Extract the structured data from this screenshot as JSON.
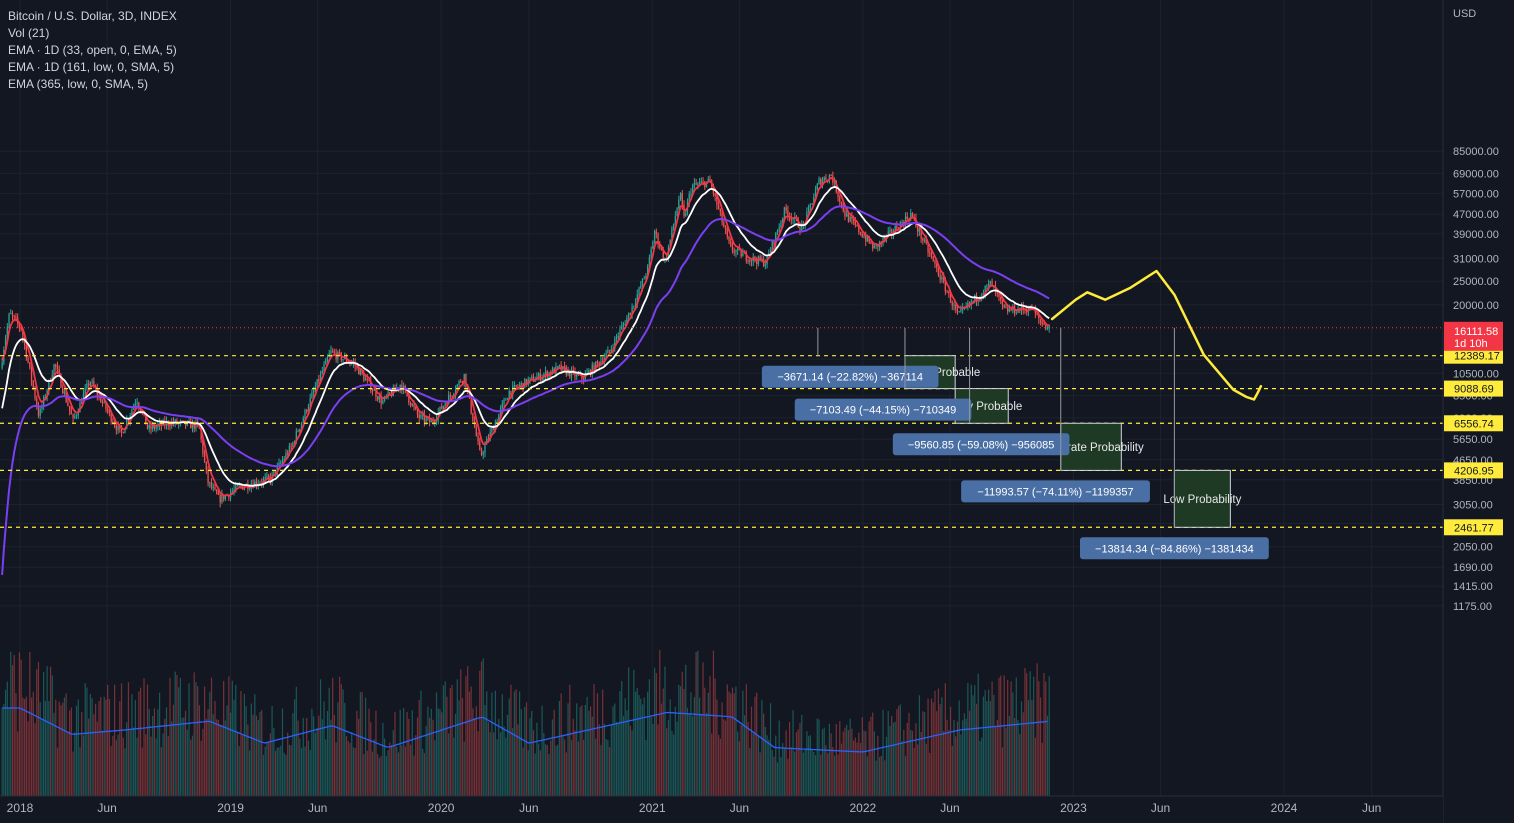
{
  "legend": {
    "title": "Bitcoin / U.S. Dollar, 3D, INDEX",
    "vol": "Vol (21)",
    "ema1": "EMA · 1D (33, open, 0, EMA, 5)",
    "ema2": "EMA · 1D (161, low, 0, SMA, 5)",
    "ema3": "EMA (365, low, 0, SMA, 5)"
  },
  "colors": {
    "background": "#131722",
    "up": "#26a69a",
    "down": "#ef5350",
    "ema_red": "#f23645",
    "ema_white": "#ffffff",
    "ema_purple": "#7b3ff2",
    "vol_ma": "#2962ff",
    "level_line": "#ffeb3b",
    "zone_fill": "#1e3a24",
    "zone_border": "#d1d4dc",
    "label_fill": "#4a6fa5",
    "drawing": "#ffeb3b",
    "price_label": "#f23645"
  },
  "chart_data": {
    "type": "candlestick",
    "symbol": "Bitcoin / U.S. Dollar",
    "interval": "3D",
    "yscale": "log",
    "ylim": [
      1000,
      100000
    ],
    "currency": "USD",
    "x_ticks": [
      "2018",
      "Jun",
      "2019",
      "Jun",
      "2020",
      "Jun",
      "2021",
      "Jun",
      "2022",
      "Jun",
      "2023",
      "Jun",
      "2024",
      "Jun"
    ],
    "y_ticks": [
      85000,
      69000,
      57000,
      47000,
      39000,
      31000,
      25000,
      20000,
      12000,
      10500,
      8500,
      6900,
      5650,
      4650,
      3850,
      3050,
      2550,
      2050,
      1690,
      1415,
      1175
    ],
    "price_path": [
      [
        "2017-12-01",
        11000
      ],
      [
        "2017-12-17",
        18500
      ],
      [
        "2018-01-06",
        16000
      ],
      [
        "2018-02-06",
        7000
      ],
      [
        "2018-03-05",
        11500
      ],
      [
        "2018-04-06",
        6700
      ],
      [
        "2018-05-05",
        9800
      ],
      [
        "2018-06-28",
        5900
      ],
      [
        "2018-07-25",
        8300
      ],
      [
        "2018-08-14",
        6200
      ],
      [
        "2018-09-20",
        6600
      ],
      [
        "2018-11-10",
        6400
      ],
      [
        "2018-11-25",
        3800
      ],
      [
        "2018-12-15",
        3200
      ],
      [
        "2019-01-20",
        3600
      ],
      [
        "2019-03-15",
        3900
      ],
      [
        "2019-04-20",
        5300
      ],
      [
        "2019-05-25",
        8500
      ],
      [
        "2019-06-26",
        12800
      ],
      [
        "2019-08-05",
        11500
      ],
      [
        "2019-09-24",
        8000
      ],
      [
        "2019-10-26",
        9500
      ],
      [
        "2019-11-25",
        7000
      ],
      [
        "2019-12-18",
        6600
      ],
      [
        "2020-02-13",
        10300
      ],
      [
        "2020-03-12",
        4800
      ],
      [
        "2020-04-30",
        8800
      ],
      [
        "2020-06-01",
        9700
      ],
      [
        "2020-07-27",
        11000
      ],
      [
        "2020-09-05",
        10000
      ],
      [
        "2020-10-21",
        12800
      ],
      [
        "2020-11-30",
        19500
      ],
      [
        "2020-12-27",
        28000
      ],
      [
        "2021-01-08",
        40000
      ],
      [
        "2021-01-27",
        30000
      ],
      [
        "2021-02-21",
        57000
      ],
      [
        "2021-02-28",
        45000
      ],
      [
        "2021-03-13",
        61000
      ],
      [
        "2021-04-14",
        64000
      ],
      [
        "2021-05-19",
        34000
      ],
      [
        "2021-06-22",
        31000
      ],
      [
        "2021-07-20",
        29800
      ],
      [
        "2021-08-22",
        49000
      ],
      [
        "2021-09-21",
        41000
      ],
      [
        "2021-10-20",
        64000
      ],
      [
        "2021-11-10",
        68000
      ],
      [
        "2021-12-04",
        47000
      ],
      [
        "2022-01-24",
        34000
      ],
      [
        "2022-03-28",
        47000
      ],
      [
        "2022-05-12",
        28000
      ],
      [
        "2022-06-18",
        18000
      ],
      [
        "2022-08-14",
        24500
      ],
      [
        "2022-09-06",
        19000
      ],
      [
        "2022-10-24",
        19300
      ],
      [
        "2022-11-08",
        17000
      ],
      [
        "2022-11-21",
        16111.58
      ]
    ],
    "volume_ma": [
      [
        "2018-01-01",
        1
      ],
      [
        "2018-04-01",
        0.7
      ],
      [
        "2018-07-01",
        0.75
      ],
      [
        "2018-11-25",
        0.85
      ],
      [
        "2019-03-01",
        0.6
      ],
      [
        "2019-06-26",
        0.8
      ],
      [
        "2019-10-01",
        0.55
      ],
      [
        "2020-03-12",
        0.9
      ],
      [
        "2020-06-01",
        0.6
      ],
      [
        "2021-01-27",
        0.95
      ],
      [
        "2021-05-19",
        0.9
      ],
      [
        "2021-08-01",
        0.55
      ],
      [
        "2022-01-01",
        0.5
      ],
      [
        "2022-06-18",
        0.75
      ],
      [
        "2022-11-21",
        0.85
      ]
    ],
    "current_price": {
      "value": 16111.58,
      "label": "16111.58",
      "countdown": "1d 10h"
    },
    "levels": [
      {
        "value": 12389.17,
        "label": "12389.17"
      },
      {
        "value": 9088.69,
        "label": "9088.69"
      },
      {
        "value": 6556.74,
        "label": "6556.74"
      },
      {
        "value": 4206.95,
        "label": "4206.95"
      },
      {
        "value": 2461.77,
        "label": "2461.77"
      }
    ],
    "zones": [
      {
        "label": "Extremely Probable",
        "top": 12389.17,
        "bottom": 9088.69,
        "start": "2022-03-15",
        "end": "2022-06-10"
      },
      {
        "label": "Highly Probable",
        "top": 9088.69,
        "bottom": 6556.74,
        "start": "2022-06-10",
        "end": "2022-09-10"
      },
      {
        "label": "Moderate Probability",
        "top": 6556.74,
        "bottom": 4206.95,
        "start": "2022-12-10",
        "end": "2023-03-25"
      },
      {
        "label": "Low Probability",
        "top": 4206.95,
        "bottom": 2461.77,
        "start": "2023-06-25",
        "end": "2023-09-30"
      }
    ],
    "measures": [
      {
        "text": "−3671.14 (−22.82%) −367114",
        "date": "2021-12-10",
        "value": 12389.17,
        "anchor": "2021-10-15"
      },
      {
        "text": "−7103.49 (−44.15%) −710349",
        "date": "2022-02-05",
        "value": 9088.69,
        "anchor": "2022-03-15"
      },
      {
        "text": "−9560.85 (−59.08%) −956085",
        "date": "2022-07-25",
        "value": 6556.74,
        "anchor": "2022-07-05"
      },
      {
        "text": "−11993.57 (−74.11%) −1199357",
        "date": "2022-12-01",
        "value": 4206.95,
        "anchor": "2022-12-10"
      },
      {
        "text": "−13814.34 (−84.86%) −1381434",
        "date": "2023-06-25",
        "value": 2461.77,
        "anchor": "2023-06-25"
      }
    ],
    "projection": [
      [
        "2022-11-25",
        17500
      ],
      [
        "2023-01-05",
        21000
      ],
      [
        "2023-01-25",
        22500
      ],
      [
        "2023-02-25",
        21000
      ],
      [
        "2023-04-10",
        23500
      ],
      [
        "2023-05-25",
        27500
      ],
      [
        "2023-06-25",
        22000
      ],
      [
        "2023-08-15",
        12500
      ],
      [
        "2023-10-05",
        9000
      ],
      [
        "2023-10-28",
        8400
      ],
      [
        "2023-11-10",
        8200
      ],
      [
        "2023-11-16",
        8700
      ],
      [
        "2023-11-22",
        9300
      ]
    ],
    "grid": true,
    "legend_position": "top-left"
  }
}
